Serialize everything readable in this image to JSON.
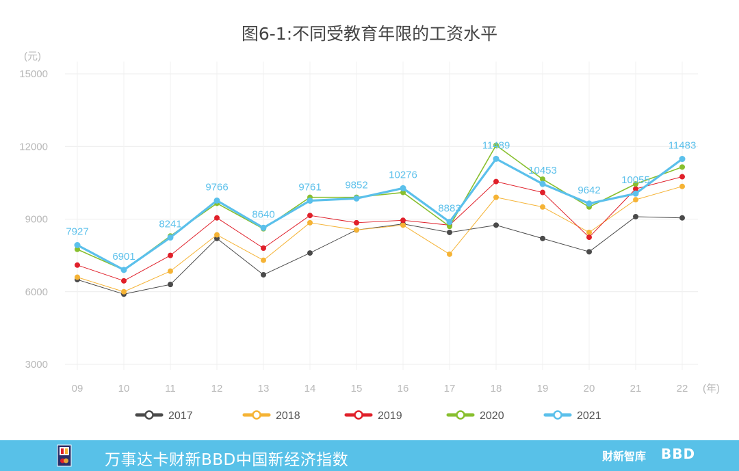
{
  "chart_data": {
    "type": "line",
    "title": "图6-1:不同受教育年限的工资水平",
    "ylabel": "(元)",
    "xlabel": "(年)",
    "ylim": [
      3000,
      15000
    ],
    "yticks": [
      3000,
      6000,
      9000,
      12000,
      15000
    ],
    "categories": [
      "09",
      "10",
      "11",
      "12",
      "13",
      "14",
      "15",
      "16",
      "17",
      "18",
      "19",
      "20",
      "21",
      "22"
    ],
    "grid": true,
    "legend_position": "bottom",
    "series": [
      {
        "name": "2017",
        "color": "#4a4a4a",
        "values": [
          6500,
          5900,
          6300,
          8200,
          6700,
          7600,
          8550,
          8800,
          8450,
          8750,
          8200,
          7650,
          9100,
          9050
        ]
      },
      {
        "name": "2018",
        "color": "#f5b335",
        "values": [
          6600,
          6000,
          6850,
          8350,
          7300,
          8850,
          8550,
          8750,
          7550,
          9900,
          9500,
          8450,
          9800,
          10350
        ]
      },
      {
        "name": "2019",
        "color": "#e0202a",
        "values": [
          7100,
          6450,
          7500,
          9050,
          7800,
          9150,
          8850,
          8950,
          8750,
          10550,
          10100,
          8250,
          10250,
          10750
        ]
      },
      {
        "name": "2020",
        "color": "#88bf2e",
        "values": [
          7750,
          6900,
          8300,
          9650,
          8600,
          9900,
          9900,
          10100,
          8700,
          12050,
          10650,
          9500,
          10450,
          11150
        ]
      },
      {
        "name": "2021",
        "color": "#5bc0eb",
        "values": [
          7927,
          6901,
          8241,
          9766,
          8640,
          9761,
          9852,
          10276,
          8883,
          11489,
          10453,
          9642,
          10055,
          11483
        ],
        "labels": [
          "7927",
          "6901",
          "8241",
          "9766",
          "8640",
          "9761",
          "9852",
          "10276",
          "8883",
          "11489",
          "10453",
          "9642",
          "10055",
          "11483"
        ]
      }
    ]
  },
  "footer": {
    "title": "万事达卡财新BBD中国新经济指数",
    "brand_caixin": "财新智库",
    "brand_bbd": "BBD"
  }
}
